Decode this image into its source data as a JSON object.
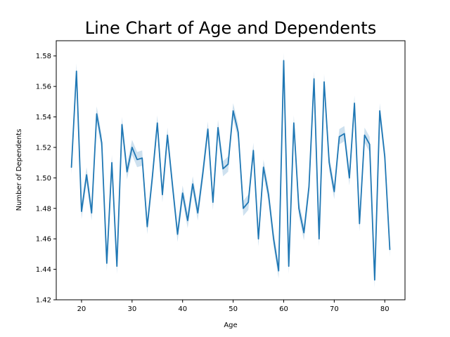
{
  "chart_data": {
    "type": "line",
    "title": "Line Chart of Age and Dependents",
    "xlabel": "Age",
    "ylabel": "Number of Dependents",
    "xlim": [
      15,
      84
    ],
    "ylim": [
      1.42,
      1.59
    ],
    "xticks": [
      20,
      30,
      40,
      50,
      60,
      70,
      80
    ],
    "yticks": [
      1.42,
      1.44,
      1.46,
      1.48,
      1.5,
      1.52,
      1.54,
      1.56,
      1.58
    ],
    "grid": false,
    "legend": "none",
    "line_color": "#1f77b4",
    "band_color": "#1f77b4",
    "confidence_band": true,
    "band_halfwidth": 0.005,
    "x": [
      18,
      19,
      20,
      21,
      22,
      23,
      24,
      25,
      26,
      27,
      28,
      29,
      30,
      31,
      32,
      33,
      34,
      35,
      36,
      37,
      38,
      39,
      40,
      41,
      42,
      43,
      44,
      45,
      46,
      47,
      48,
      49,
      50,
      51,
      52,
      53,
      54,
      55,
      56,
      57,
      58,
      59,
      60,
      61,
      62,
      63,
      64,
      65,
      66,
      67,
      68,
      69,
      70,
      71,
      72,
      73,
      74,
      75,
      76,
      77,
      78,
      79,
      80,
      81
    ],
    "series": [
      {
        "values": [
          1.507,
          1.57,
          1.478,
          1.502,
          1.477,
          1.542,
          1.523,
          1.444,
          1.51,
          1.442,
          1.535,
          1.504,
          1.52,
          1.512,
          1.513,
          1.468,
          1.5,
          1.536,
          1.489,
          1.528,
          1.495,
          1.463,
          1.49,
          1.472,
          1.496,
          1.477,
          1.503,
          1.532,
          1.484,
          1.533,
          1.506,
          1.509,
          1.544,
          1.53,
          1.48,
          1.484,
          1.518,
          1.46,
          1.507,
          1.489,
          1.46,
          1.439,
          1.577,
          1.442,
          1.536,
          1.48,
          1.464,
          1.494,
          1.565,
          1.46,
          1.563,
          1.51,
          1.491,
          1.527,
          1.529,
          1.5,
          1.549,
          1.47,
          1.528,
          1.522,
          1.433,
          1.544,
          1.514,
          1.453
        ]
      }
    ]
  }
}
